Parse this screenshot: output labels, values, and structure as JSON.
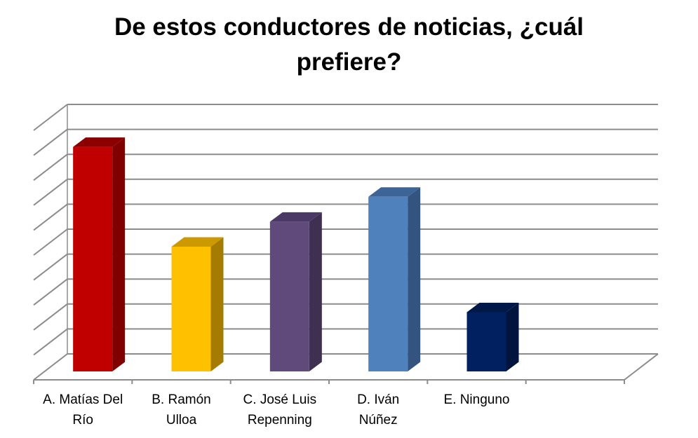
{
  "chart_data": {
    "type": "bar",
    "style": "3d-clustered-column",
    "title_lines": [
      "De estos conductores de noticias, ¿cuál",
      "prefiere?"
    ],
    "categories": [
      [
        "A. Matías Del",
        "Río"
      ],
      [
        "B. Ramón",
        "Ulloa"
      ],
      [
        "C. José Luis",
        "Repenning"
      ],
      [
        "D. Iván",
        "Núñez"
      ],
      [
        "E. Ninguno"
      ]
    ],
    "series": [
      {
        "values": [
          36,
          20,
          24,
          28,
          9.5
        ]
      }
    ],
    "ylim": [
      0,
      40
    ],
    "y_gridline_step": 4,
    "y_tick_labels_shown": false,
    "grid": true,
    "legend": "none",
    "colors": {
      "bars": [
        "#C00000",
        "#FFC000",
        "#604A7B",
        "#4F81BD",
        "#002060"
      ],
      "bar_tops": [
        "#8B0000",
        "#CC9900",
        "#4A3966",
        "#3C6496",
        "#001848"
      ],
      "bar_sides": [
        "#800000",
        "#A67C00",
        "#3F3052",
        "#345480",
        "#00143D"
      ],
      "gridlines": "#8C8C8C",
      "axis": "#8C8C8C"
    }
  }
}
